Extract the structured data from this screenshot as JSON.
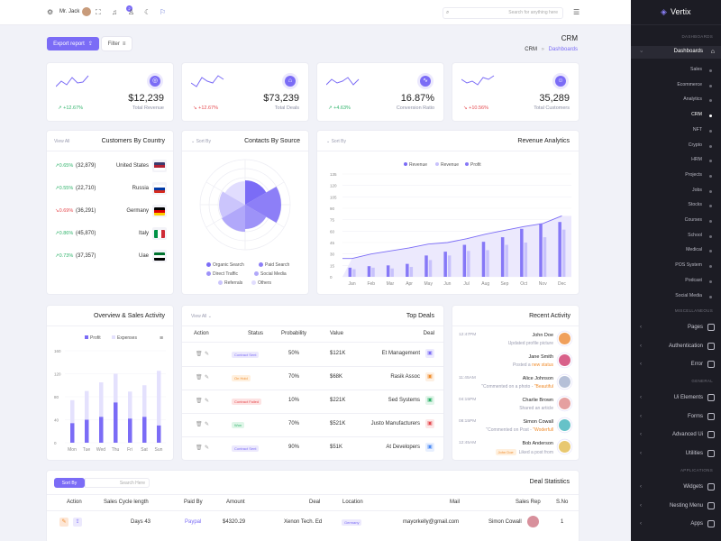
{
  "topbar": {
    "user_name": "Mr. Jack",
    "search_placeholder": "Search for anything here",
    "notif_count": "2"
  },
  "header": {
    "export_label": "Export report",
    "filter_label": "Filter",
    "page_title": "CRM",
    "breadcrumb_root": "CRM",
    "breadcrumb_current": "Dashboards"
  },
  "stats": [
    {
      "value": "$12,239",
      "label": "Total Revenue",
      "change": "+12.67%",
      "trend": "up"
    },
    {
      "value": "$73,239",
      "label": "Total Deals",
      "change": "+12.67%",
      "trend": "down"
    },
    {
      "value": "16.87%",
      "label": "Conversion Ratio",
      "change": "+4.63%",
      "trend": "up"
    },
    {
      "value": "35,289",
      "label": "Total Customers",
      "change": "+10.56%",
      "trend": "down"
    }
  ],
  "countries": {
    "title": "Customers By Country",
    "view_all": "View All",
    "rows": [
      {
        "change": "0.65%",
        "count": "(32,879)",
        "name": "United States",
        "trend": "up"
      },
      {
        "change": "0.55%",
        "count": "(22,710)",
        "name": "Russia",
        "trend": "up"
      },
      {
        "change": "0.69%",
        "count": "(36,291)",
        "name": "Germany",
        "trend": "down"
      },
      {
        "change": "0.86%",
        "count": "(45,870)",
        "name": "Italy",
        "trend": "up"
      },
      {
        "change": "0.73%",
        "count": "(37,357)",
        "name": "Uae",
        "trend": "up"
      }
    ]
  },
  "contacts": {
    "title": "Contacts By Source",
    "sort_label": "Sort By",
    "legend": [
      "Organic Search",
      "Paid Search",
      "Direct Traffic",
      "Social Media",
      "Referrals",
      "Others"
    ]
  },
  "revenue": {
    "title": "Revenue Analytics",
    "sort_label": "Sort By"
  },
  "revenue_chart": {
    "type": "bar",
    "legend": [
      "Revenue",
      "Revenue",
      "Profit"
    ],
    "categories": [
      "Jan",
      "Feb",
      "Mar",
      "Apr",
      "May",
      "Jun",
      "Jul",
      "Aug",
      "Sep",
      "Oct",
      "Nov",
      "Dec"
    ],
    "yticks": [
      "0",
      "15",
      "30",
      "45",
      "60",
      "75",
      "90",
      "105",
      "120",
      "135"
    ],
    "ylim": [
      0,
      135
    ],
    "series": [
      {
        "name": "Revenue",
        "type": "area",
        "values": [
          24,
          30,
          34,
          38,
          43,
          45,
          50,
          56,
          61,
          66,
          70,
          80
        ]
      },
      {
        "name": "Revenue",
        "type": "bar",
        "values": [
          12,
          14,
          15,
          17,
          28,
          33,
          42,
          46,
          52,
          63,
          70,
          72
        ]
      },
      {
        "name": "Profit",
        "type": "bar",
        "values": [
          10,
          12,
          11,
          13,
          22,
          28,
          34,
          35,
          42,
          45,
          52,
          62
        ]
      }
    ]
  },
  "overview": {
    "title": "Overview & Sales Activity",
    "legend": [
      "Profit",
      "Expenses"
    ]
  },
  "overview_chart": {
    "type": "bar",
    "categories": [
      "Mon",
      "Tue",
      "Wed",
      "Thu",
      "Fri",
      "Sat",
      "Sun"
    ],
    "yticks": [
      "0",
      "40",
      "80",
      "120",
      "160"
    ],
    "ylim": [
      0,
      160
    ],
    "series": [
      {
        "name": "Profit",
        "values": [
          34,
          40,
          45,
          70,
          42,
          45,
          30
        ]
      },
      {
        "name": "Expenses",
        "values": [
          40,
          50,
          60,
          50,
          47,
          55,
          95
        ]
      }
    ]
  },
  "top_deals": {
    "title": "Top Deals",
    "view_all": "View All",
    "headers": [
      "Action",
      "Status",
      "Probability",
      "Value",
      "Deal"
    ],
    "rows": [
      {
        "status": "Contract Sent",
        "prob": "50%",
        "value": "$121K",
        "deal": "Et Management",
        "kind": "sent"
      },
      {
        "status": "On Hold",
        "prob": "70%",
        "value": "$68K",
        "deal": "Rasik Assoc",
        "kind": "hold"
      },
      {
        "status": "Contract Failed",
        "prob": "10%",
        "value": "$221K",
        "deal": "Sed Systems",
        "kind": "failed"
      },
      {
        "status": "Won",
        "prob": "70%",
        "value": "$521K",
        "deal": "Justo Manufacturers",
        "kind": "won"
      },
      {
        "status": "Contract Sent",
        "prob": "90%",
        "value": "$51K",
        "deal": "At Developers",
        "kind": "sent"
      }
    ]
  },
  "activity": {
    "title": "Recent Activity",
    "items": [
      {
        "time": "12:47PM",
        "name": "John Doe",
        "text": "Updated profile picture",
        "highlight": ""
      },
      {
        "time": "",
        "name": "Jane Smith",
        "text": "Posted a ",
        "highlight": "new status"
      },
      {
        "time": "11:45AM",
        "name": "Alice Johnson",
        "text": "\"Commented on a photo - ",
        "highlight": "\"Beautiful"
      },
      {
        "time": "04:15PM",
        "name": "Charlie Brown",
        "text": "Shared an article",
        "highlight": ""
      },
      {
        "time": "08:15PM",
        "name": "Simon Cowall",
        "text": "\"Commented on Post - ",
        "highlight": "\"Woderfull"
      },
      {
        "time": "12:45AM",
        "name": "Bob Anderson",
        "text": "Liked a post from",
        "highlight": "John Doe"
      }
    ]
  },
  "deal_stats": {
    "title": "Deal Statistics",
    "sort_label": "Sort By",
    "search_placeholder": "Search Here",
    "headers": [
      "Action",
      "Sales Cycle length",
      "Paid By",
      "Amount",
      "Deal",
      "Location",
      "Mail",
      "Sales Rep",
      "S.No"
    ],
    "rows": [
      {
        "cycle": "Days 43",
        "paid_by": "Paypal",
        "amount": "$4320.29",
        "deal": "Xenon Tech. Ed",
        "location": "Germany",
        "mail": "mayorkelly@gmail.com",
        "rep": "Simon Cowall",
        "sno": "1"
      }
    ]
  },
  "sidebar": {
    "brand": "Vertix",
    "headings": [
      "DASHBOARDS",
      "MISCELLANEOUS",
      "GENERAL",
      "APPLICATIONS"
    ],
    "dashboards_label": "Dashboards",
    "sub_items": [
      "Sales",
      "Ecommerce",
      "Analytics",
      "CRM",
      "NFT",
      "Crypto",
      "HRM",
      "Projects",
      "Jobs",
      "Stocks",
      "Courses",
      "School",
      "Medical",
      "POS System",
      "Podcast",
      "Social Media"
    ],
    "misc_items": [
      "Pages",
      "Authentication",
      "Error"
    ],
    "general_items": [
      "Ui Elements",
      "Forms",
      "Advanced Ui",
      "Utilities"
    ],
    "app_items": [
      "Widgets",
      "Nesting Menu",
      "Apps"
    ]
  },
  "colors": {
    "accent": "#7b6cf6",
    "accent_light": "#d9d5fd",
    "sidebar_bg": "#1c1c24",
    "up": "#30b36b",
    "down": "#e5484d"
  }
}
